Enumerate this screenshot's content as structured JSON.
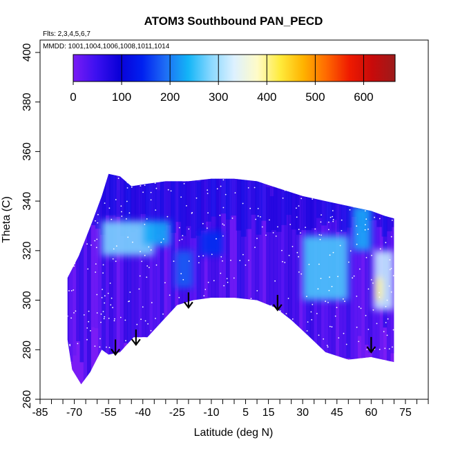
{
  "chart_data": {
    "type": "heatmap",
    "title": "ATOM3 Southbound PAN_PECD",
    "flights_note": "Flts: 2,3,4,5,6,7",
    "dates_note": "MMDD: 1001,1004,1006,1008,1011,1014",
    "xlabel": "Latitude (deg N)",
    "ylabel": "Theta (C)",
    "xlim": [
      -85,
      85
    ],
    "ylim": [
      260,
      405
    ],
    "x_ticks": [
      "-85",
      "-70",
      "-55",
      "-40",
      "-25",
      "-10",
      "5",
      "15",
      "30",
      "45",
      "60",
      "75"
    ],
    "x_tick_values": [
      -85,
      -70,
      -55,
      -40,
      -25,
      -10,
      5,
      15,
      30,
      45,
      60,
      75
    ],
    "y_ticks": [
      "260",
      "280",
      "300",
      "320",
      "340",
      "360",
      "380",
      "400"
    ],
    "y_tick_values": [
      260,
      280,
      300,
      320,
      340,
      360,
      380,
      400
    ],
    "colorbar": {
      "range": [
        0,
        665
      ],
      "tick_labels": [
        "0",
        "100",
        "200",
        "300",
        "400",
        "500",
        "600"
      ],
      "tick_values": [
        0,
        100,
        200,
        300,
        400,
        500,
        600
      ],
      "colors": [
        "#7a1cf5",
        "#3c10f0",
        "#0a00d8",
        "#0020f0",
        "#1e6cf5",
        "#13b5f7",
        "#8ad8ff",
        "#ddf1ff",
        "#fffbc8",
        "#ffeb3c",
        "#ffb300",
        "#ff6a00",
        "#ef1b00",
        "#c80a0a",
        "#9c1b1b"
      ]
    },
    "domain_top_theta": [
      [
        -73,
        309
      ],
      [
        -68,
        318
      ],
      [
        -62,
        332
      ],
      [
        -58,
        342
      ],
      [
        -55,
        351
      ],
      [
        -50,
        350
      ],
      [
        -45,
        346
      ],
      [
        -38,
        347
      ],
      [
        -30,
        348
      ],
      [
        -20,
        348
      ],
      [
        -10,
        349
      ],
      [
        0,
        349
      ],
      [
        10,
        348
      ],
      [
        20,
        345
      ],
      [
        30,
        342
      ],
      [
        40,
        340
      ],
      [
        50,
        338
      ],
      [
        60,
        336
      ],
      [
        66,
        334
      ],
      [
        70,
        333
      ]
    ],
    "domain_bottom_theta": [
      [
        -73,
        284
      ],
      [
        -71,
        272
      ],
      [
        -67,
        266
      ],
      [
        -63,
        271
      ],
      [
        -58,
        280
      ],
      [
        -55,
        278
      ],
      [
        -50,
        279
      ],
      [
        -44,
        285
      ],
      [
        -38,
        285
      ],
      [
        -32,
        291
      ],
      [
        -25,
        298
      ],
      [
        -18,
        300
      ],
      [
        -10,
        301
      ],
      [
        0,
        301
      ],
      [
        10,
        300
      ],
      [
        18,
        297
      ],
      [
        25,
        292
      ],
      [
        32,
        286
      ],
      [
        40,
        279
      ],
      [
        50,
        276
      ],
      [
        60,
        277
      ],
      [
        70,
        275
      ]
    ],
    "enhanced_regions": [
      {
        "lat_range": [
          -58,
          -35
        ],
        "theta_range": [
          318,
          332
        ],
        "value": 280
      },
      {
        "lat_range": [
          -40,
          -28
        ],
        "theta_range": [
          322,
          332
        ],
        "value": 230
      },
      {
        "lat_range": [
          -26,
          -18
        ],
        "theta_range": [
          305,
          320
        ],
        "value": 180
      },
      {
        "lat_range": [
          -15,
          -5
        ],
        "theta_range": [
          318,
          328
        ],
        "value": 150
      },
      {
        "lat_range": [
          30,
          50
        ],
        "theta_range": [
          300,
          326
        ],
        "value": 260
      },
      {
        "lat_range": [
          52,
          60
        ],
        "theta_range": [
          320,
          338
        ],
        "value": 230
      },
      {
        "lat_range": [
          61,
          70
        ],
        "theta_range": [
          296,
          320
        ],
        "value": 320
      },
      {
        "lat_range": [
          62,
          65
        ],
        "theta_range": [
          300,
          309
        ],
        "value": 400
      }
    ],
    "tropopause_arrows": [
      {
        "lat": -52,
        "theta": 278
      },
      {
        "lat": -43,
        "theta": 282
      },
      {
        "lat": -20,
        "theta": 297
      },
      {
        "lat": 19,
        "theta": 296
      },
      {
        "lat": 60,
        "theta": 279
      }
    ]
  }
}
